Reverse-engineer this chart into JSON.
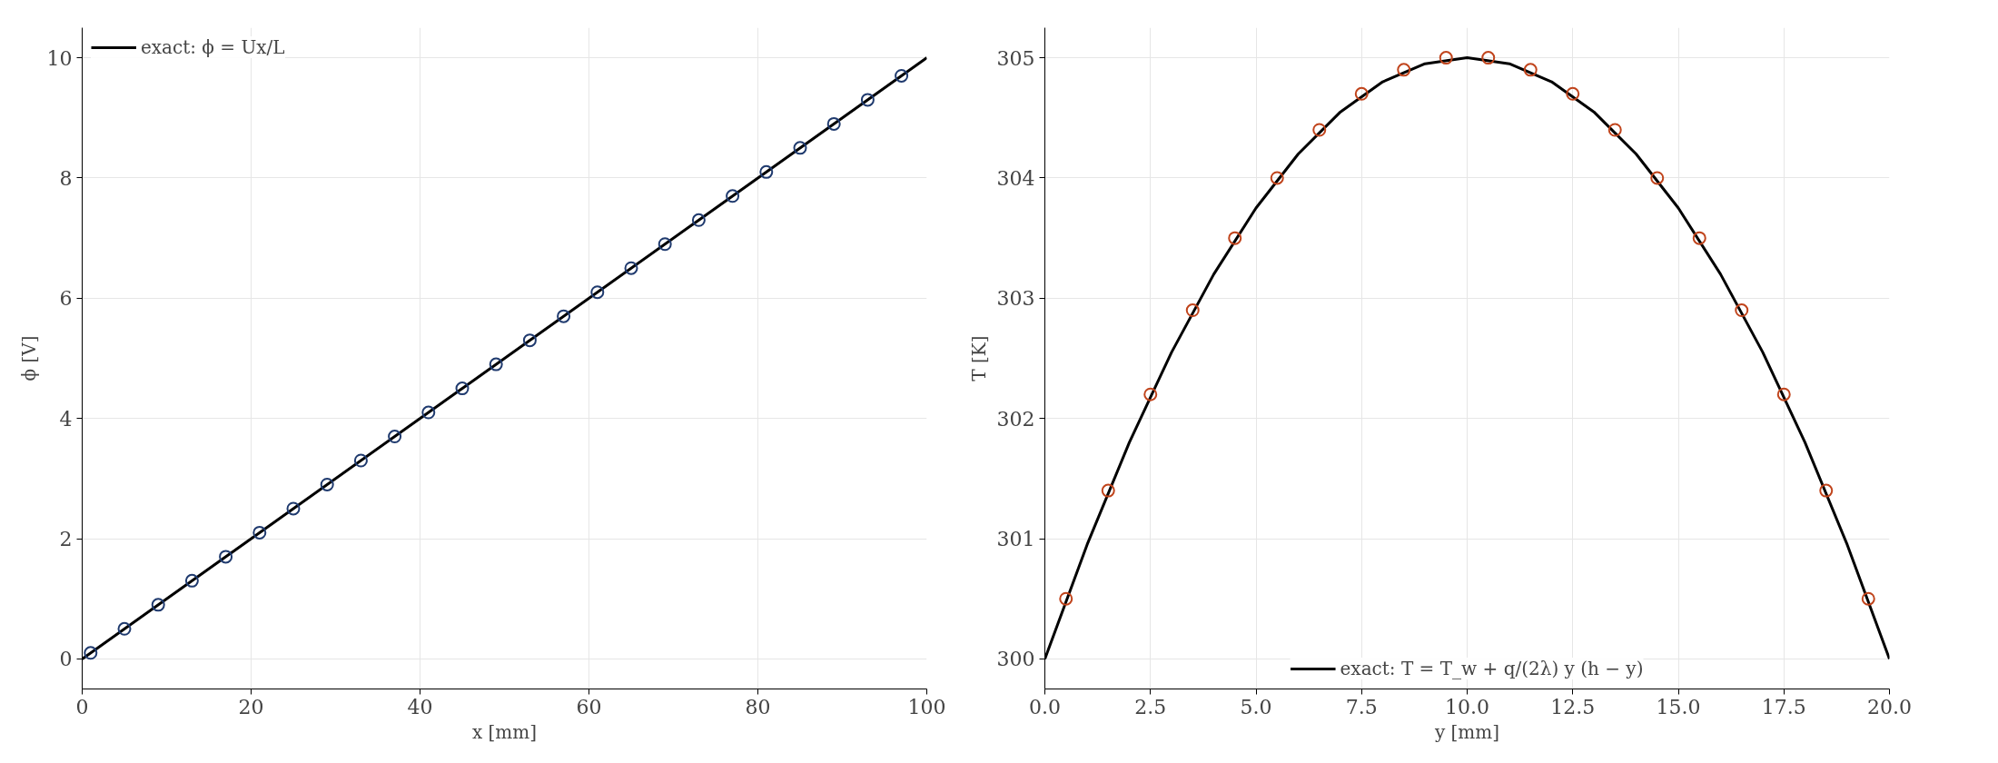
{
  "chart_data": [
    {
      "type": "scatter",
      "xlabel": "x [mm]",
      "ylabel": "ϕ [V]",
      "xlim": [
        0,
        100
      ],
      "ylim": [
        -0.5,
        10.5
      ],
      "xticks": [
        0,
        20,
        40,
        60,
        80,
        100
      ],
      "yticks": [
        0,
        2,
        4,
        6,
        8,
        10
      ],
      "grid": true,
      "legend": "top left",
      "marker": "circle",
      "series": [
        {
          "name": "exact: ϕ = Ux/L",
          "type": "line",
          "color": "#000000",
          "line_style": "solid",
          "marker": "none",
          "x": [
            0,
            100
          ],
          "values": [
            0,
            10
          ]
        },
        {
          "color": "#1f3a6e",
          "x": [
            1,
            5,
            9,
            13,
            17,
            21,
            25,
            29,
            33,
            37,
            41,
            45,
            49,
            53,
            57,
            61,
            65,
            69,
            73,
            77,
            81,
            85,
            89,
            93,
            97
          ],
          "values": [
            0.1,
            0.5,
            0.9,
            1.3,
            1.7,
            2.1,
            2.5,
            2.9,
            3.3,
            3.7,
            4.1,
            4.5,
            4.9,
            5.3,
            5.7,
            6.1,
            6.5,
            6.9,
            7.3,
            7.7,
            8.1,
            8.5,
            8.9,
            9.3,
            9.7
          ]
        }
      ]
    },
    {
      "type": "scatter",
      "xlabel": "y [mm]",
      "ylabel": "T [K]",
      "xlim": [
        0,
        20
      ],
      "ylim": [
        299.75,
        305.25
      ],
      "xticks": [
        {
          "value": 0,
          "label": "0.0"
        },
        {
          "value": 2.5,
          "label": "2.5"
        },
        {
          "value": 5,
          "label": "5.0"
        },
        {
          "value": 7.5,
          "label": "7.5"
        },
        {
          "value": 10,
          "label": "10.0"
        },
        {
          "value": 12.5,
          "label": "12.5"
        },
        {
          "value": 15,
          "label": "15.0"
        },
        {
          "value": 17.5,
          "label": "17.5"
        },
        {
          "value": 20,
          "label": "20.0"
        }
      ],
      "yticks": [
        300,
        301,
        302,
        303,
        304,
        305
      ],
      "grid": true,
      "legend": "bottom",
      "marker": "circle",
      "series": [
        {
          "name": "exact: T = T_w + q/(2λ) y (h − y)",
          "type": "line",
          "color": "#000000",
          "line_style": "solid",
          "marker": "none",
          "x": [
            0,
            1,
            2,
            3,
            4,
            5,
            6,
            7,
            8,
            9,
            10,
            11,
            12,
            13,
            14,
            15,
            16,
            17,
            18,
            19,
            20
          ],
          "values": [
            300,
            300.95,
            301.8,
            302.55,
            303.2,
            303.75,
            304.2,
            304.55,
            304.8,
            304.95,
            305,
            304.95,
            304.8,
            304.55,
            304.2,
            303.75,
            303.2,
            302.55,
            301.8,
            300.95,
            300
          ]
        },
        {
          "color": "#c0441c",
          "x": [
            0.5,
            1.5,
            2.5,
            3.5,
            4.5,
            5.5,
            6.5,
            7.5,
            8.5,
            9.5,
            10.5,
            11.5,
            12.5,
            13.5,
            14.5,
            15.5,
            16.5,
            17.5,
            18.5,
            19.5
          ],
          "values": [
            300.5,
            301.4,
            302.2,
            302.9,
            303.5,
            304.0,
            304.4,
            304.7,
            304.9,
            305.0,
            305.0,
            304.9,
            304.7,
            304.4,
            304.0,
            303.5,
            302.9,
            302.2,
            301.4,
            300.5
          ]
        }
      ]
    }
  ]
}
